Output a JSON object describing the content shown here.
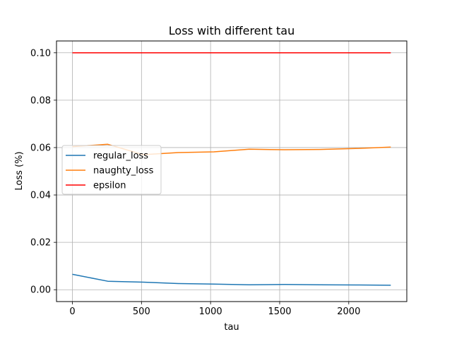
{
  "chart_data": {
    "type": "line",
    "title": "Loss with different tau",
    "xlabel": "tau",
    "ylabel": "Loss (%)",
    "xlim": [
      -115,
      2420
    ],
    "ylim": [
      -0.005,
      0.105
    ],
    "xticks": [
      0,
      500,
      1000,
      1500,
      2000
    ],
    "yticks": [
      0.0,
      0.02,
      0.04,
      0.06,
      0.08,
      0.1
    ],
    "ytick_labels": [
      "0.00",
      "0.02",
      "0.04",
      "0.06",
      "0.08",
      "0.10"
    ],
    "grid": true,
    "legend_position": "center-left",
    "series": [
      {
        "name": "regular_loss",
        "color": "#1f77b4",
        "x": [
          0,
          256,
          512,
          768,
          1024,
          1280,
          1536,
          1792,
          2048,
          2304
        ],
        "y": [
          0.0065,
          0.0036,
          0.0032,
          0.0026,
          0.0024,
          0.0021,
          0.0022,
          0.0021,
          0.002,
          0.0019
        ]
      },
      {
        "name": "naughty_loss",
        "color": "#ff7f0e",
        "x": [
          0,
          256,
          512,
          768,
          1024,
          1280,
          1536,
          1792,
          2048,
          2304
        ],
        "y": [
          0.0604,
          0.0614,
          0.057,
          0.0579,
          0.0582,
          0.0593,
          0.0591,
          0.0592,
          0.0596,
          0.0602
        ]
      },
      {
        "name": "epsilon",
        "color": "#ff0000",
        "x": [
          0,
          2304
        ],
        "y": [
          0.1,
          0.1
        ]
      }
    ]
  }
}
